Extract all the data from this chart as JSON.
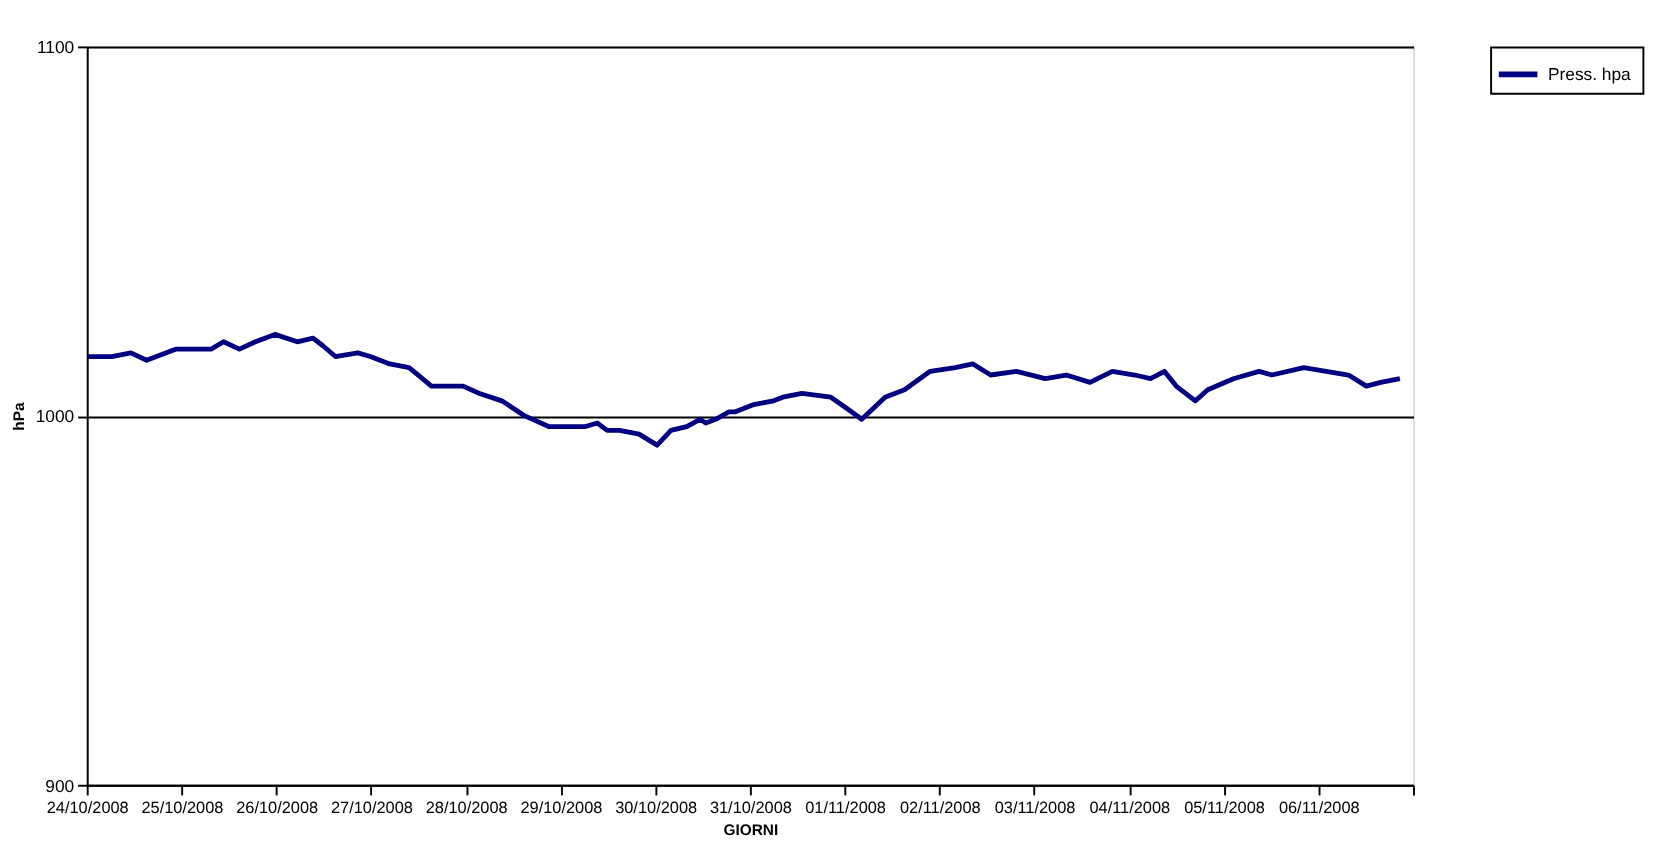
{
  "chart_data": {
    "type": "line",
    "xlabel": "GIORNI",
    "ylabel": "hPa",
    "x": [
      "2008-10-24T00:20",
      "2008-10-24T06:20",
      "2008-10-24T11:10",
      "2008-10-24T15:10",
      "2008-10-24T22:30",
      "2008-10-25T04:10",
      "2008-10-25T07:30",
      "2008-10-25T10:40",
      "2008-10-25T14:40",
      "2008-10-25T18:45",
      "2008-10-25T23:40",
      "2008-10-26T05:20",
      "2008-10-26T09:20",
      "2008-10-26T11:45",
      "2008-10-26T15:00",
      "2008-10-26T20:40",
      "2008-10-26T23:50",
      "2008-10-27T04:45",
      "2008-10-27T09:40",
      "2008-10-27T15:20",
      "2008-10-27T19:20",
      "2008-10-27T23:20",
      "2008-10-28T03:30",
      "2008-10-28T09:10",
      "2008-10-28T14:50",
      "2008-10-28T21:10",
      "2008-10-29T03:40",
      "2008-10-29T06:10",
      "2008-10-29T09:20",
      "2008-10-29T11:50",
      "2008-10-29T15:00",
      "2008-10-29T19:55",
      "2008-10-30T00:30",
      "2008-10-30T04:00",
      "2008-10-30T08:00",
      "2008-10-30T11:20",
      "2008-10-30T12:50",
      "2008-10-30T15:20",
      "2008-10-30T18:40",
      "2008-10-30T20:10",
      "2008-10-31T01:00",
      "2008-10-31T06:00",
      "2008-10-31T08:20",
      "2008-10-31T13:10",
      "2008-10-31T20:30",
      "2008-11-01T00:30",
      "2008-11-01T04:20",
      "2008-11-01T10:15",
      "2008-11-01T15:10",
      "2008-11-01T21:40",
      "2008-11-02T04:00",
      "2008-11-02T08:30",
      "2008-11-02T13:00",
      "2008-11-02T19:30",
      "2008-11-03T02:50",
      "2008-11-03T08:10",
      "2008-11-03T14:10",
      "2008-11-03T19:50",
      "2008-11-04T01:30",
      "2008-11-04T05:30",
      "2008-11-04T09:00",
      "2008-11-04T12:00",
      "2008-11-04T16:50",
      "2008-11-04T20:00",
      "2008-11-05T02:30",
      "2008-11-05T09:00",
      "2008-11-05T12:15",
      "2008-11-05T20:20",
      "2008-11-06T02:00",
      "2008-11-06T07:40",
      "2008-11-06T12:10",
      "2008-11-06T15:50",
      "2008-11-06T20:40"
    ],
    "series": [
      {
        "name": "Press.  hpa",
        "color": "#000080",
        "values": [
          1016,
          1016,
          1017,
          1015,
          1018,
          1018,
          1018,
          1020,
          1018,
          1020,
          1022,
          1020,
          1021,
          1019,
          1016,
          1017,
          1016,
          1014,
          1013,
          1008,
          1008,
          1008,
          1006,
          1004,
          1000,
          997,
          997,
          997,
          998,
          996,
          996,
          995,
          992,
          996,
          997,
          999,
          998,
          999,
          1001,
          1001,
          1003,
          1004,
          1005,
          1006,
          1005,
          1002,
          999,
          1005,
          1007,
          1012,
          1013,
          1014,
          1011,
          1012,
          1010,
          1011,
          1009,
          1012,
          1011,
          1010,
          1012,
          1008,
          1004,
          1007,
          1010,
          1012,
          1011,
          1013,
          1012,
          1011,
          1008,
          1009,
          1010
        ]
      }
    ],
    "xlim": [
      "2008-10-24",
      "2008-11-07"
    ],
    "xticks": [
      {
        "value": "2008-10-24",
        "label": "24/10/2008"
      },
      {
        "value": "2008-10-25",
        "label": "25/10/2008"
      },
      {
        "value": "2008-10-26",
        "label": "26/10/2008"
      },
      {
        "value": "2008-10-27",
        "label": "27/10/2008"
      },
      {
        "value": "2008-10-28",
        "label": "28/10/2008"
      },
      {
        "value": "2008-10-29",
        "label": "29/10/2008"
      },
      {
        "value": "2008-10-30",
        "label": "30/10/2008"
      },
      {
        "value": "2008-10-31",
        "label": "31/10/2008"
      },
      {
        "value": "2008-11-01",
        "label": "01/11/2008"
      },
      {
        "value": "2008-11-02",
        "label": "02/11/2008"
      },
      {
        "value": "2008-11-03",
        "label": "03/11/2008"
      },
      {
        "value": "2008-11-04",
        "label": "04/11/2008"
      },
      {
        "value": "2008-11-05",
        "label": "05/11/2008"
      },
      {
        "value": "2008-11-06",
        "label": "06/11/2008"
      },
      {
        "value": "2008-11-07",
        "label": null
      }
    ],
    "ylim": [
      900,
      1100
    ],
    "yticks": [
      900,
      1000,
      1100
    ],
    "grid": "y",
    "legend": "right",
    "line_style": "solid",
    "marker": "none"
  }
}
